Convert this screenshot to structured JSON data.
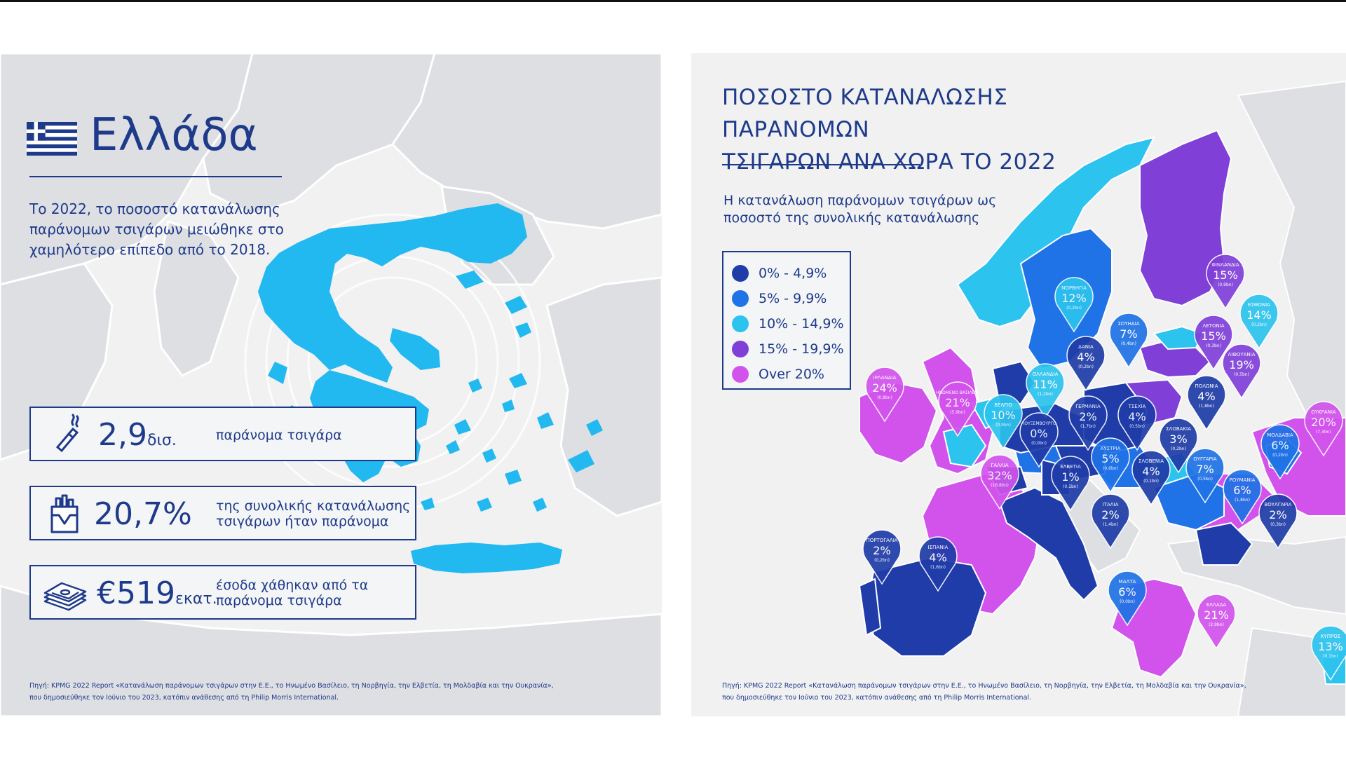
{
  "left": {
    "country": "Ελλάδα",
    "intro": "Το 2022, το ποσοστό κατανάλωσης παράνομων τσιγάρων μειώθηκε στο χαμηλότερο επίπεδο από το 2018.",
    "stats": [
      {
        "value": "2,9",
        "unit": "δισ.",
        "desc": "παράνομα τσιγάρα",
        "icon": "cigarette-icon"
      },
      {
        "value": "20,7%",
        "unit": "",
        "desc": "της συνολικής κατανάλωσης τσιγάρων ήταν παράνομα",
        "icon": "cigarette-pack-icon"
      },
      {
        "value": "€519",
        "unit": "εκατ.",
        "desc": "έσοδα χάθηκαν από τα παράνομα τσιγάρα",
        "icon": "money-stack-icon"
      }
    ],
    "source_line1": "Πηγή: KPMG 2022 Report «Κατανάλωση παράνομων τσιγάρων στην Ε.Ε., το Ηνωμένο Βασίλειο, τη Νορβηγία, την Ελβετία, τη Μολδαβία και την Ουκρανία»,",
    "source_line2": "που δημοσιεύθηκε τον Ιούνιο του 2023, κατόπιν ανάθεσης από τη Philip Morris International.",
    "colors": {
      "greece_map": "#22b8f0",
      "text": "#1e3a8a"
    }
  },
  "right": {
    "title_line1": "ΠΟΣΟΣΤΟ ΚΑΤΑΝΑΛΩΣΗΣ ΠΑΡΑΝΟΜΩΝ",
    "title_line2": "ΤΣΙΓΑΡΩΝ ΑΝΑ ΧΩΡΑ ΤΟ 2022",
    "subtitle": "Η κατανάλωση παράνομων τσιγάρων ως ποσοστό της συνολικής κατανάλωσης",
    "legend": [
      {
        "label": "0% - 4,9%",
        "color": "#1f3ca8"
      },
      {
        "label": "5% - 9,9%",
        "color": "#1f73e6"
      },
      {
        "label": "10% - 14,9%",
        "color": "#2cc3ee"
      },
      {
        "label": "15% - 19,9%",
        "color": "#8040d8"
      },
      {
        "label": "Over 20%",
        "color": "#d253ec"
      }
    ],
    "pins": [
      {
        "name": "ΦΙΝΛΑΝΔΙΑ",
        "pct": "15%",
        "sub": "(0,9bn)",
        "cls": 3
      },
      {
        "name": "ΝΟΡΒΗΓΙΑ",
        "pct": "12%",
        "sub": "(0,2bn)",
        "cls": 2
      },
      {
        "name": "ΣΟΥΗΔΙΑ",
        "pct": "7%",
        "sub": "(0,4bn)",
        "cls": 1
      },
      {
        "name": "ΕΣΘΟΝΙΑ",
        "pct": "14%",
        "sub": "(0,2bn)",
        "cls": 2
      },
      {
        "name": "ΛΕΤΟΝΙΑ",
        "pct": "15%",
        "sub": "(0,3bn)",
        "cls": 3
      },
      {
        "name": "ΔΑΝΙΑ",
        "pct": "4%",
        "sub": "(0,2bn)",
        "cls": 0
      },
      {
        "name": "ΛΙΘΟΥΑΝΙΑ",
        "pct": "19%",
        "sub": "(0,5bn)",
        "cls": 3
      },
      {
        "name": "ΙΡΛΑΝΔΙΑ",
        "pct": "24%",
        "sub": "(0,8bn)",
        "cls": 4
      },
      {
        "name": "ΟΛΛΑΝΔΙΑ",
        "pct": "11%",
        "sub": "(1,2bn)",
        "cls": 2
      },
      {
        "name": "ΗΝΩΜΕΝΟ ΒΑΣΙΛΕΙΟ",
        "pct": "21%",
        "sub": "(5,9bn)",
        "cls": 4
      },
      {
        "name": "ΠΟΛΩΝΙΑ",
        "pct": "4%",
        "sub": "(1,8bn)",
        "cls": 0
      },
      {
        "name": "ΒΕΛΓΙΟ",
        "pct": "10%",
        "sub": "(0,9bn)",
        "cls": 2
      },
      {
        "name": "ΓΕΡΜΑΝΙΑ",
        "pct": "2%",
        "sub": "(1,7bn)",
        "cls": 0
      },
      {
        "name": "ΤΣΕΧΙΑ",
        "pct": "4%",
        "sub": "(0,5bn)",
        "cls": 0
      },
      {
        "name": "ΟΥΚΡΑΝΙΑ",
        "pct": "20%",
        "sub": "(7,4bn)",
        "cls": 4
      },
      {
        "name": "ΛΟΥΞΕΜΒΟΥΡΓΟ",
        "pct": "0%",
        "sub": "(0,0bn)",
        "cls": 0
      },
      {
        "name": "ΣΛΟΒΑΚΙΑ",
        "pct": "3%",
        "sub": "(0,2bn)",
        "cls": 0
      },
      {
        "name": "ΜΟΛΔΑΒΙΑ",
        "pct": "6%",
        "sub": "(0,2bn)",
        "cls": 1
      },
      {
        "name": "ΑΥΣΤΡΙΑ",
        "pct": "5%",
        "sub": "(0,6bn)",
        "cls": 1
      },
      {
        "name": "ΓΑΛΛΙΑ",
        "pct": "32%",
        "sub": "(16,8bn)",
        "cls": 4
      },
      {
        "name": "ΣΛΟΒΕΝΙΑ",
        "pct": "4%",
        "sub": "(0,1bn)",
        "cls": 0
      },
      {
        "name": "ΟΥΓΓΑΡΙΑ",
        "pct": "7%",
        "sub": "(0,5bn)",
        "cls": 1
      },
      {
        "name": "ΕΛΒΕΤΙΑ",
        "pct": "1%",
        "sub": "(0,1bn)",
        "cls": 0
      },
      {
        "name": "ΡΟΥΜΑΝΙΑ",
        "pct": "6%",
        "sub": "(1,8bn)",
        "cls": 1
      },
      {
        "name": "ΙΤΑΛΙΑ",
        "pct": "2%",
        "sub": "(1,4bn)",
        "cls": 0
      },
      {
        "name": "ΒΟΥΛΓΑΡΙΑ",
        "pct": "2%",
        "sub": "(0,3bn)",
        "cls": 0
      },
      {
        "name": "ΠΟΡΤΟΓΑΛΙΑ",
        "pct": "2%",
        "sub": "(0,2bn)",
        "cls": 0
      },
      {
        "name": "ΙΣΠΑΝΙΑ",
        "pct": "4%",
        "sub": "(1,6bn)",
        "cls": 0
      },
      {
        "name": "ΜΑΛΤΑ",
        "pct": "6%",
        "sub": "(0,0bn)",
        "cls": 1
      },
      {
        "name": "ΕΛΛΑΔΑ",
        "pct": "21%",
        "sub": "(2,9bn)",
        "cls": 4
      },
      {
        "name": "ΚΥΠΡΟΣ",
        "pct": "13%",
        "sub": "(0,1bn)",
        "cls": 2
      }
    ],
    "source_line1": "Πηγή: KPMG 2022 Report «Κατανάλωση παράνομων τσιγάρων στην Ε.Ε., το Ηνωμένο Βασίλειο, τη Νορβηγία, την Ελβετία, τη Μολδαβία και την Ουκρανία»,",
    "source_line2": "που δημοσιεύθηκε τον Ιούνιο του 2023, κατόπιν ανάθεσης από τη Philip Morris International."
  }
}
